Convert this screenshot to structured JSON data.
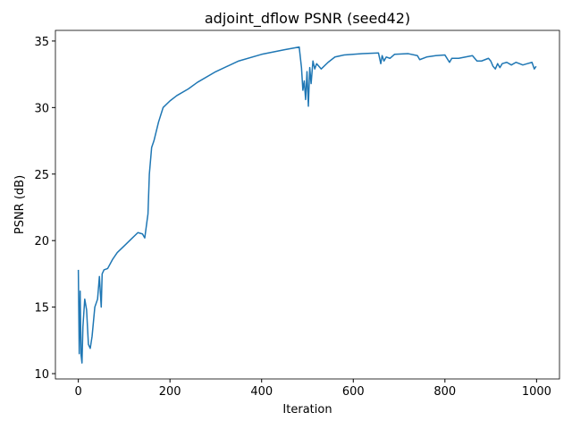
{
  "chart_data": {
    "type": "line",
    "title": "adjoint_dflow PSNR (seed42)",
    "x_label": "Iteration",
    "y_label": "PSNR (dB)",
    "x": [
      0,
      2,
      4,
      6,
      8,
      10,
      14,
      18,
      22,
      26,
      30,
      36,
      42,
      46,
      50,
      52,
      56,
      64,
      75,
      85,
      100,
      115,
      130,
      140,
      145,
      150,
      152,
      155,
      160,
      165,
      175,
      185,
      200,
      215,
      240,
      260,
      300,
      350,
      400,
      450,
      482,
      487,
      490,
      493,
      496,
      499,
      502,
      505,
      508,
      512,
      516,
      520,
      530,
      545,
      560,
      580,
      620,
      655,
      660,
      663,
      667,
      672,
      680,
      690,
      720,
      740,
      745,
      760,
      780,
      800,
      810,
      815,
      830,
      860,
      870,
      880,
      895,
      900,
      905,
      910,
      915,
      920,
      925,
      935,
      945,
      955,
      970,
      980,
      990,
      995,
      999
    ],
    "series": [
      {
        "name": "PSNR",
        "color": "#1f77b4",
        "values": [
          17.8,
          11.5,
          16.2,
          11.4,
          10.8,
          13.5,
          15.6,
          14.8,
          12.2,
          11.9,
          12.8,
          15.0,
          15.6,
          17.3,
          15.0,
          17.5,
          17.8,
          17.9,
          18.6,
          19.1,
          19.6,
          20.1,
          20.6,
          20.5,
          20.2,
          21.5,
          22.0,
          25.0,
          27.0,
          27.5,
          28.9,
          30.0,
          30.5,
          30.9,
          31.4,
          31.9,
          32.7,
          33.5,
          34.0,
          34.35,
          34.55,
          33.0,
          31.3,
          32.0,
          30.6,
          32.7,
          30.1,
          33.0,
          31.8,
          33.5,
          32.9,
          33.3,
          32.9,
          33.4,
          33.8,
          33.95,
          34.05,
          34.1,
          33.3,
          33.9,
          33.5,
          33.8,
          33.7,
          34.0,
          34.05,
          33.9,
          33.6,
          33.8,
          33.9,
          33.95,
          33.4,
          33.7,
          33.7,
          33.9,
          33.5,
          33.5,
          33.7,
          33.5,
          33.1,
          32.9,
          33.3,
          33.0,
          33.3,
          33.4,
          33.2,
          33.4,
          33.2,
          33.3,
          33.4,
          32.9,
          33.1
        ]
      }
    ],
    "xlim": [
      -50,
      1050
    ],
    "ylim": [
      9.6,
      35.8
    ],
    "xticks": [
      0,
      200,
      400,
      600,
      800,
      1000
    ],
    "yticks": [
      10,
      15,
      20,
      25,
      30,
      35
    ]
  }
}
